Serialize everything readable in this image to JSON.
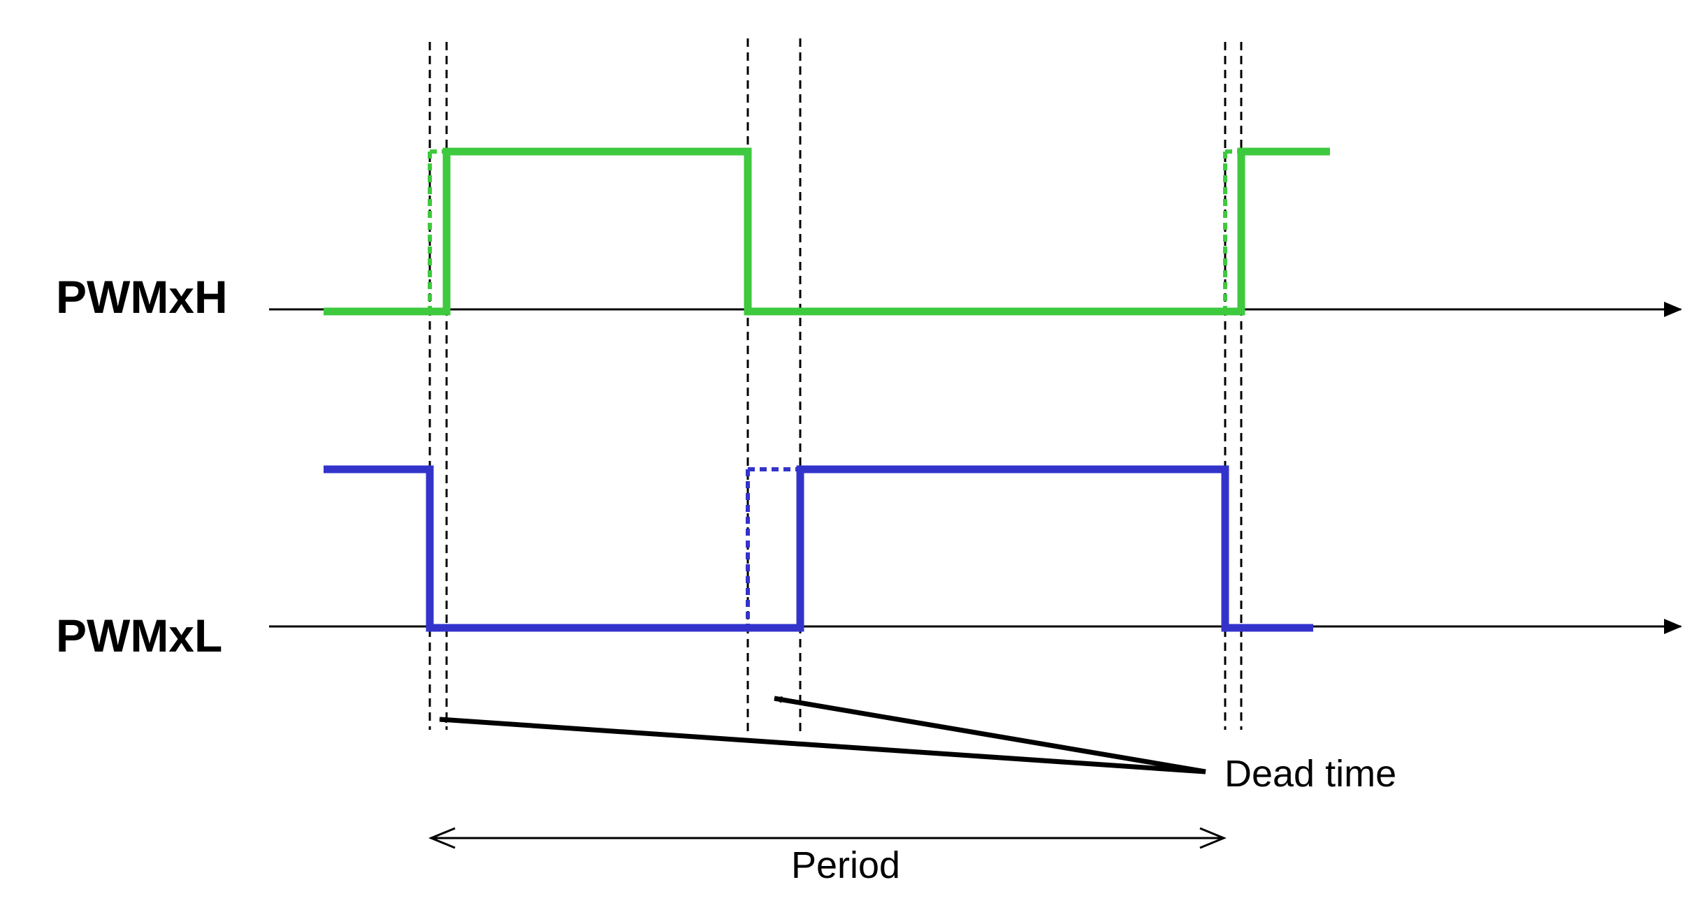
{
  "signals": {
    "high": {
      "label": "PWMxH",
      "color": "#3ec93e"
    },
    "low": {
      "label": "PWMxL",
      "color": "#3333cc"
    }
  },
  "annotations": {
    "dead_time": "Dead time",
    "period": "Period"
  },
  "colors": {
    "axis": "#000000",
    "guide": "#000000"
  }
}
